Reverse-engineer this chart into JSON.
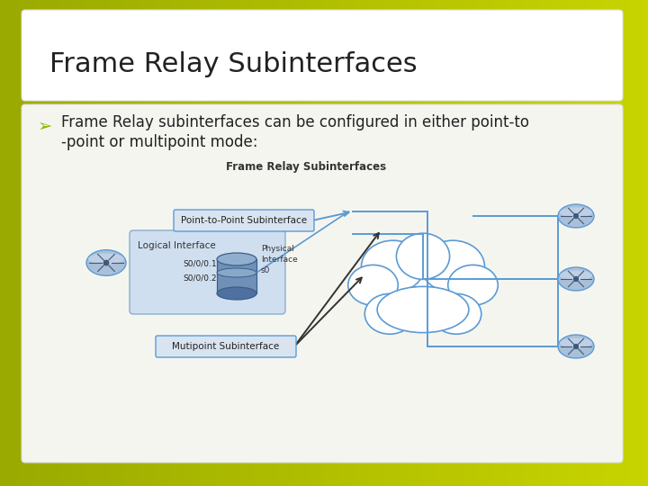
{
  "title": "Frame Relay Subinterfaces",
  "bullet_text_line1": "Frame Relay subinterfaces can be configured in either point-to",
  "bullet_text_line2": "-point or multipoint mode:",
  "diagram_title": "Frame Relay Subinterfaces",
  "label_point_to_point": "Point-to-Point Subinterface",
  "label_multipoint": "Mutipoint Subinterface",
  "label_logical": "Logical Interface",
  "label_physical": "Physical\nInterface\ns0",
  "label_s0001": "S0/0/0.1",
  "label_s0002": "S0/0/0.2",
  "slide_bg_left": "#c8d400",
  "slide_bg_right": "#9aaa00",
  "title_bg": "#ffffff",
  "content_bg": "#f5f5f0",
  "cloud_border": "#5b9bd5",
  "router_fill": "#aabfd8",
  "router_edge": "#5b9bd5",
  "blue_line": "#5b9bd5",
  "black_arrow": "#333333",
  "label_box_bg": "#d9e4f0",
  "label_box_border": "#5b9bd5",
  "logical_box_bg": "#d0dff0",
  "logical_box_border": "#8aaecc",
  "cyl_fill": "#7090b8",
  "cyl_top": "#90aece",
  "text_color": "#222222",
  "bullet_color": "#8ab800",
  "title_fontsize": 22,
  "bullet_fontsize": 12,
  "diagram_fontsize": 8
}
